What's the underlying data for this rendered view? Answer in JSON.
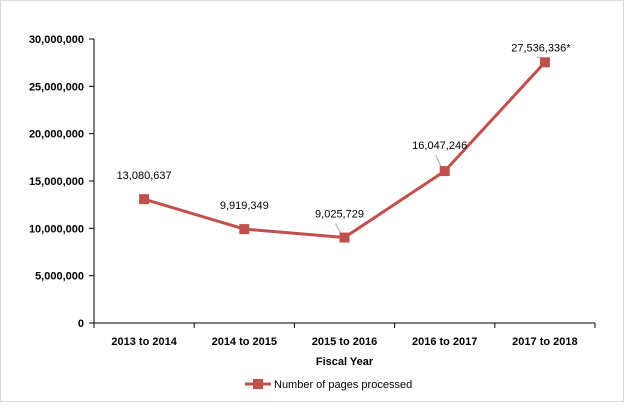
{
  "chart_data": {
    "type": "line",
    "title": "",
    "xlabel": "Fiscal Year",
    "ylabel": "",
    "categories": [
      "2013 to 2014",
      "2014 to 2015",
      "2015 to 2016",
      "2016  to 2017",
      "2017  to 2018"
    ],
    "series": [
      {
        "name": "Number of pages processed",
        "values": [
          13080637,
          9919349,
          9025729,
          16047246,
          27536336
        ],
        "labels": [
          "13,080,637",
          "9,919,349",
          "9,025,729",
          "16,047,246",
          "27,536,336*"
        ],
        "color": "#c0504d"
      }
    ],
    "ylim": [
      0,
      30000000
    ],
    "yticks": [
      0,
      5000000,
      10000000,
      15000000,
      20000000,
      25000000,
      30000000
    ],
    "ytick_labels": [
      "0",
      "5,000,000",
      "10,000,000",
      "15,000,000",
      "20,000,000",
      "25,000,000",
      "30,000,000"
    ],
    "grid": false,
    "legend": "bottom"
  }
}
